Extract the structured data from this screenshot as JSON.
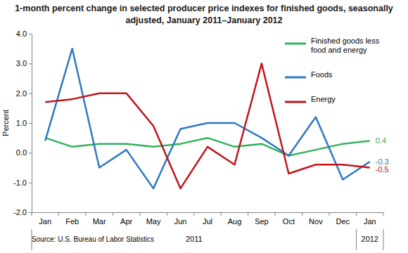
{
  "chart_data": {
    "type": "line",
    "title": "1-month percent change in selected producer price indexes for finished goods, seasonally adjusted, January 2011–January 2012",
    "y_label": "Percent",
    "source": "Source: U.S. Bureau of Labor Statistics",
    "categories": [
      "Jan",
      "Feb",
      "Mar",
      "Apr",
      "May",
      "Jun",
      "Jul",
      "Aug",
      "Sep",
      "Oct",
      "Nov",
      "Dec",
      "Jan"
    ],
    "groups": [
      {
        "label": "2011",
        "count": 12
      },
      {
        "label": "2012",
        "count": 1
      }
    ],
    "ylim": [
      -2,
      4
    ],
    "yticks": [
      {
        "value": -2,
        "label": "-2.0"
      },
      {
        "value": -1,
        "label": "-1.0"
      },
      {
        "value": 0,
        "label": "0.0"
      },
      {
        "value": 1,
        "label": "1.0"
      },
      {
        "value": 2,
        "label": "2.0"
      },
      {
        "value": 3,
        "label": "3.0"
      },
      {
        "value": 4,
        "label": "4.0"
      }
    ],
    "grid": false,
    "legend": "top-right",
    "series": [
      {
        "name": "Finished goods less food and energy",
        "color": "#2fb35c",
        "values": [
          0.5,
          0.2,
          0.3,
          0.3,
          0.2,
          0.3,
          0.5,
          0.2,
          0.3,
          -0.1,
          0.1,
          0.3,
          0.4
        ],
        "value_labels": [
          null,
          null,
          null,
          null,
          null,
          null,
          null,
          null,
          null,
          null,
          null,
          null,
          "0.4"
        ]
      },
      {
        "name": "Foods",
        "color": "#2e78c2",
        "values": [
          0.4,
          3.5,
          -0.5,
          0.1,
          -1.2,
          0.8,
          1.0,
          1.0,
          0.5,
          -0.1,
          1.2,
          -0.9,
          -0.3
        ],
        "value_labels": [
          null,
          null,
          null,
          null,
          null,
          null,
          null,
          null,
          null,
          null,
          null,
          null,
          "-0.3"
        ]
      },
      {
        "name": "Energy",
        "color": "#c0151b",
        "values": [
          1.7,
          1.8,
          2.0,
          2.0,
          0.9,
          -1.2,
          0.2,
          -0.4,
          3.0,
          -0.7,
          -0.4,
          -0.4,
          -0.5
        ],
        "value_labels": [
          null,
          null,
          null,
          null,
          null,
          null,
          null,
          null,
          null,
          null,
          null,
          null,
          "-0.5"
        ]
      }
    ]
  }
}
